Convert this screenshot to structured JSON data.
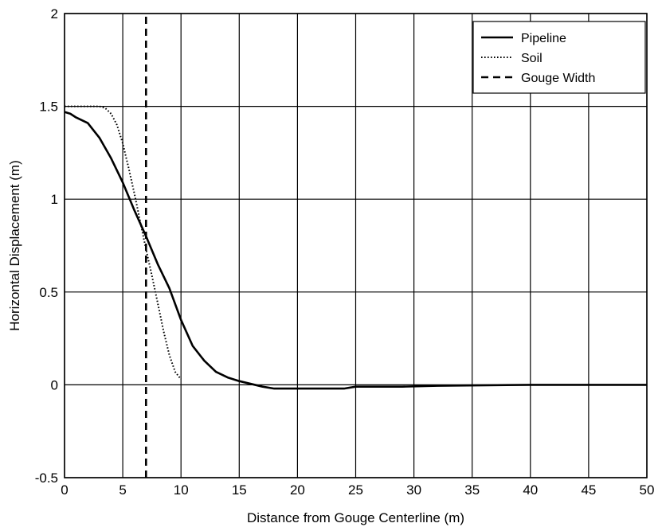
{
  "chart_data": {
    "type": "line",
    "xlabel": "Distance from Gouge Centerline (m)",
    "ylabel": "Horizontal Displacement (m)",
    "xlim": [
      0,
      50
    ],
    "ylim": [
      -0.5,
      2
    ],
    "xticks": [
      0,
      5,
      10,
      15,
      20,
      25,
      30,
      35,
      40,
      45,
      50
    ],
    "xtick_labels": [
      "0",
      "5",
      "10",
      "15",
      "20",
      "25",
      "30",
      "35",
      "40",
      "45",
      "50"
    ],
    "yticks": [
      -0.5,
      0,
      0.5,
      1,
      1.5,
      2
    ],
    "ytick_labels": [
      "-0.5",
      "0",
      "0.5",
      "1",
      "1.5",
      "2"
    ],
    "grid": true,
    "legend_position": "top-right",
    "series": [
      {
        "name": "Pipeline",
        "style": "solid",
        "color": "#000000",
        "x": [
          0,
          0.5,
          1,
          2,
          3,
          4,
          5,
          6,
          7,
          8,
          9,
          10,
          11,
          12,
          13,
          14,
          15,
          16,
          17,
          18,
          20,
          22,
          24,
          25,
          27,
          29,
          32,
          40,
          50
        ],
        "y": [
          1.47,
          1.46,
          1.44,
          1.41,
          1.33,
          1.22,
          1.09,
          0.94,
          0.8,
          0.65,
          0.52,
          0.35,
          0.21,
          0.13,
          0.07,
          0.04,
          0.02,
          0.005,
          -0.01,
          -0.02,
          -0.02,
          -0.02,
          -0.02,
          -0.01,
          -0.01,
          -0.01,
          -0.005,
          0,
          0
        ]
      },
      {
        "name": "Soil",
        "style": "dotted",
        "color": "#000000",
        "x": [
          0,
          1,
          2,
          3,
          3.5,
          4,
          4.5,
          5,
          5.5,
          6,
          6.5,
          7,
          7.5,
          8,
          8.5,
          9,
          9.5,
          10
        ],
        "y": [
          1.5,
          1.5,
          1.5,
          1.5,
          1.49,
          1.46,
          1.4,
          1.3,
          1.17,
          1.03,
          0.88,
          0.73,
          0.59,
          0.44,
          0.29,
          0.16,
          0.07,
          0.03
        ]
      },
      {
        "name": "Gouge Width",
        "style": "dashed",
        "color": "#000000",
        "x": [
          7,
          7
        ],
        "y": [
          -0.5,
          2
        ]
      }
    ]
  }
}
